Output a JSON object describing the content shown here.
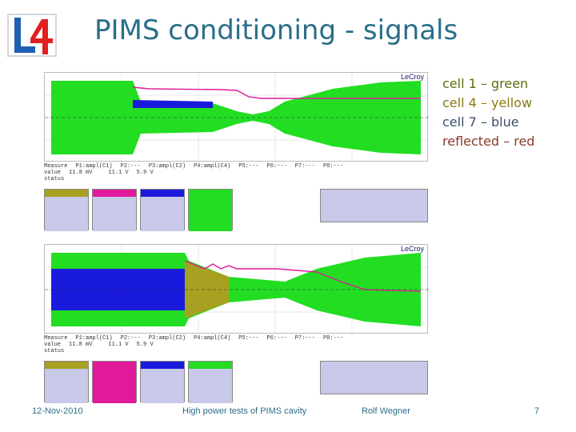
{
  "title": "PIMS conditioning - signals",
  "logo_text": "L4",
  "legend": [
    "cell 1 – green",
    "cell 4 – yellow",
    "cell 7 – blue",
    "reflected – red"
  ],
  "scope_brand": "LeCroy",
  "colors": {
    "title": "#2a6e88",
    "green": "#22dd22",
    "blue": "#1a1adc",
    "magenta": "#e01a9a",
    "olive": "#a8a020",
    "legend": "#7a5c1a"
  },
  "footer": {
    "date": "12-Nov-2010",
    "middle": "High power tests of PIMS cavity",
    "author": "Rolf Wegner",
    "page": "7"
  }
}
